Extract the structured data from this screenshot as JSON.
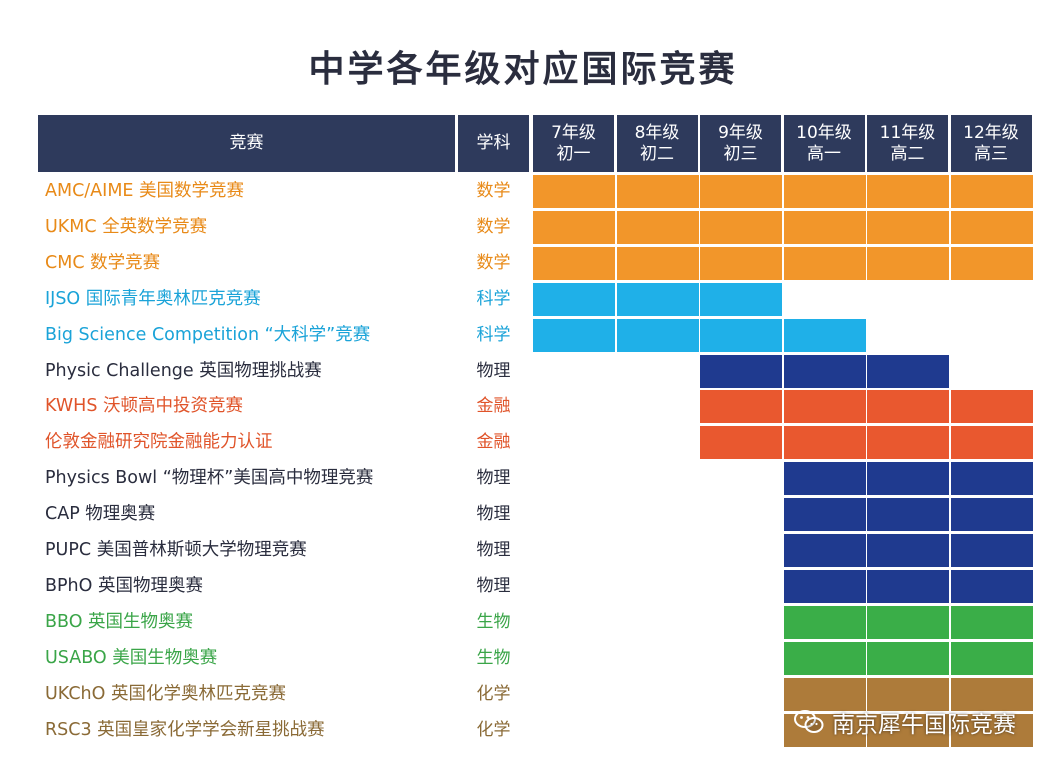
{
  "title": "中学各年级对应国际竞赛",
  "header": {
    "competition": "竞赛",
    "subject": "学科",
    "grades": [
      {
        "line1": "7年级",
        "line2": "初一"
      },
      {
        "line1": "8年级",
        "line2": "初二"
      },
      {
        "line1": "9年级",
        "line2": "初三"
      },
      {
        "line1": "10年级",
        "line2": "高一"
      },
      {
        "line1": "11年级",
        "line2": "高二"
      },
      {
        "line1": "12年级",
        "line2": "高三"
      }
    ]
  },
  "colors": {
    "header_bg": "#2e3a5c",
    "数学": "#f2962a",
    "科学": "#1fb0e8",
    "物理_light": "#1a3b8c",
    "物理": "#283e8f",
    "金融": "#e9582f",
    "生物": "#3aae48",
    "化学": "#ad7b3a"
  },
  "chart_data": {
    "type": "table",
    "title": "中学各年级对应国际竞赛",
    "columns": [
      "7年级 初一",
      "8年级 初二",
      "9年级 初三",
      "10年级 高一",
      "11年级 高二",
      "12年级 高三"
    ],
    "rows": [
      {
        "name": "AMC/AIME 美国数学竞赛",
        "subject": "数学",
        "text_color": "#e88a18",
        "fill": "#f2962a",
        "grades": [
          1,
          1,
          1,
          1,
          1,
          1
        ]
      },
      {
        "name": "UKMC 全英数学竞赛",
        "subject": "数学",
        "text_color": "#e88a18",
        "fill": "#f2962a",
        "grades": [
          1,
          1,
          1,
          1,
          1,
          1
        ]
      },
      {
        "name": "CMC 数学竞赛",
        "subject": "数学",
        "text_color": "#e88a18",
        "fill": "#f2962a",
        "grades": [
          1,
          1,
          1,
          1,
          1,
          1
        ]
      },
      {
        "name": "IJSO 国际青年奥林匹克竞赛",
        "subject": "科学",
        "text_color": "#1aa3d8",
        "fill": "#1fb0e8",
        "grades": [
          1,
          1,
          1,
          0,
          0,
          0
        ]
      },
      {
        "name": "Big Science Competition “大科学”竞赛",
        "subject": "科学",
        "text_color": "#1aa3d8",
        "fill": "#1fb0e8",
        "grades": [
          1,
          1,
          1,
          1,
          0,
          0
        ]
      },
      {
        "name": "Physic Challenge 英国物理挑战赛",
        "subject": "物理",
        "text_color": "#2a2d3e",
        "fill": "#1f3a8f",
        "grades": [
          0,
          0,
          1,
          1,
          1,
          0
        ]
      },
      {
        "name": "KWHS 沃顿高中投资竞赛",
        "subject": "金融",
        "text_color": "#e0542a",
        "fill": "#e9582f",
        "grades": [
          0,
          0,
          1,
          1,
          1,
          1
        ]
      },
      {
        "name": "伦敦金融研究院金融能力认证",
        "subject": "金融",
        "text_color": "#e0542a",
        "fill": "#e9582f",
        "grades": [
          0,
          0,
          1,
          1,
          1,
          1
        ]
      },
      {
        "name": "Physics Bowl “物理杯”美国高中物理竞赛",
        "subject": "物理",
        "text_color": "#2a2d3e",
        "fill": "#1f3a8f",
        "grades": [
          0,
          0,
          0,
          1,
          1,
          1
        ]
      },
      {
        "name": "CAP 物理奥赛",
        "subject": "物理",
        "text_color": "#2a2d3e",
        "fill": "#1f3a8f",
        "grades": [
          0,
          0,
          0,
          1,
          1,
          1
        ]
      },
      {
        "name": "PUPC 美国普林斯顿大学物理竞赛",
        "subject": "物理",
        "text_color": "#2a2d3e",
        "fill": "#1f3a8f",
        "grades": [
          0,
          0,
          0,
          1,
          1,
          1
        ]
      },
      {
        "name": "BPhO 英国物理奥赛",
        "subject": "物理",
        "text_color": "#2a2d3e",
        "fill": "#1f3a8f",
        "grades": [
          0,
          0,
          0,
          1,
          1,
          1
        ]
      },
      {
        "name": "BBO 英国生物奥赛",
        "subject": "生物",
        "text_color": "#3aa548",
        "fill": "#3aae48",
        "grades": [
          0,
          0,
          0,
          1,
          1,
          1
        ]
      },
      {
        "name": "USABO 美国生物奥赛",
        "subject": "生物",
        "text_color": "#3aa548",
        "fill": "#3aae48",
        "grades": [
          0,
          0,
          0,
          1,
          1,
          1
        ]
      },
      {
        "name": "UKChO 英国化学奥林匹克竞赛",
        "subject": "化学",
        "text_color": "#8a6a36",
        "fill": "#ad7b3a",
        "grades": [
          0,
          0,
          0,
          1,
          1,
          1
        ]
      },
      {
        "name": "RSC3 英国皇家化学学会新星挑战赛",
        "subject": "化学",
        "text_color": "#8a6a36",
        "fill": "#ad7b3a",
        "grades": [
          0,
          0,
          0,
          1,
          1,
          1
        ]
      }
    ]
  },
  "watermark": {
    "text": "南京犀牛国际竞赛",
    "icon": "wechat-icon"
  }
}
